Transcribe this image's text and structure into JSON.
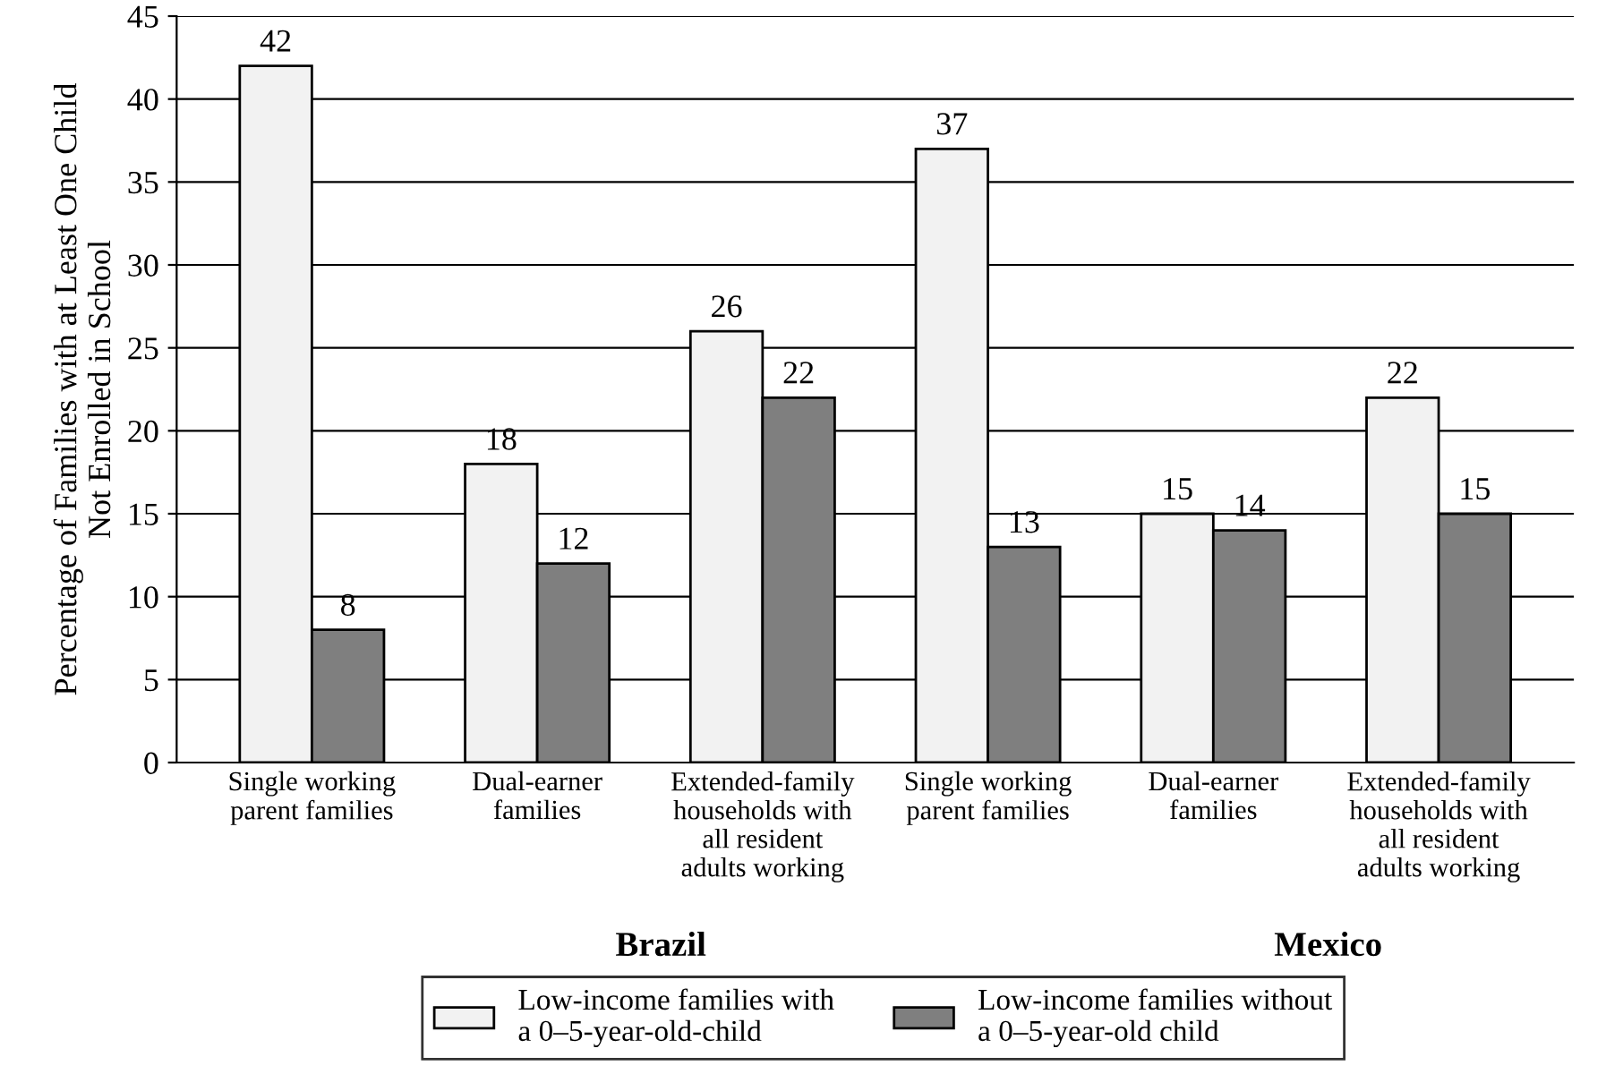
{
  "chart_data": {
    "type": "bar",
    "ylabel": "Percentage of Families with at Least One Child\nNot Enrolled in School",
    "categories": [
      "Single working\nparent families",
      "Dual-earner\nfamilies",
      "Extended-family\nhouseholds with\nall resident\nadults working",
      "Single working\nparent families",
      "Dual-earner\nfamilies",
      "Extended-family\nhouseholds with\nall resident\nadults working"
    ],
    "series": [
      {
        "name": "Low-income families with\na 0–5-year-old-child",
        "color": "#f2f2f2",
        "values": [
          42,
          18,
          26,
          37,
          15,
          22
        ]
      },
      {
        "name": "Low-income families without\na 0–5-year-old child",
        "color": "#7f7f7f",
        "values": [
          8,
          12,
          22,
          13,
          14,
          15
        ]
      }
    ],
    "ylim": [
      0,
      45
    ],
    "yticks": [
      0,
      5,
      10,
      15,
      20,
      25,
      30,
      35,
      40,
      45
    ],
    "grid": "y",
    "legend": "bottom",
    "data_labels": true,
    "annotations": [
      "Brazil",
      "Mexico"
    ]
  }
}
